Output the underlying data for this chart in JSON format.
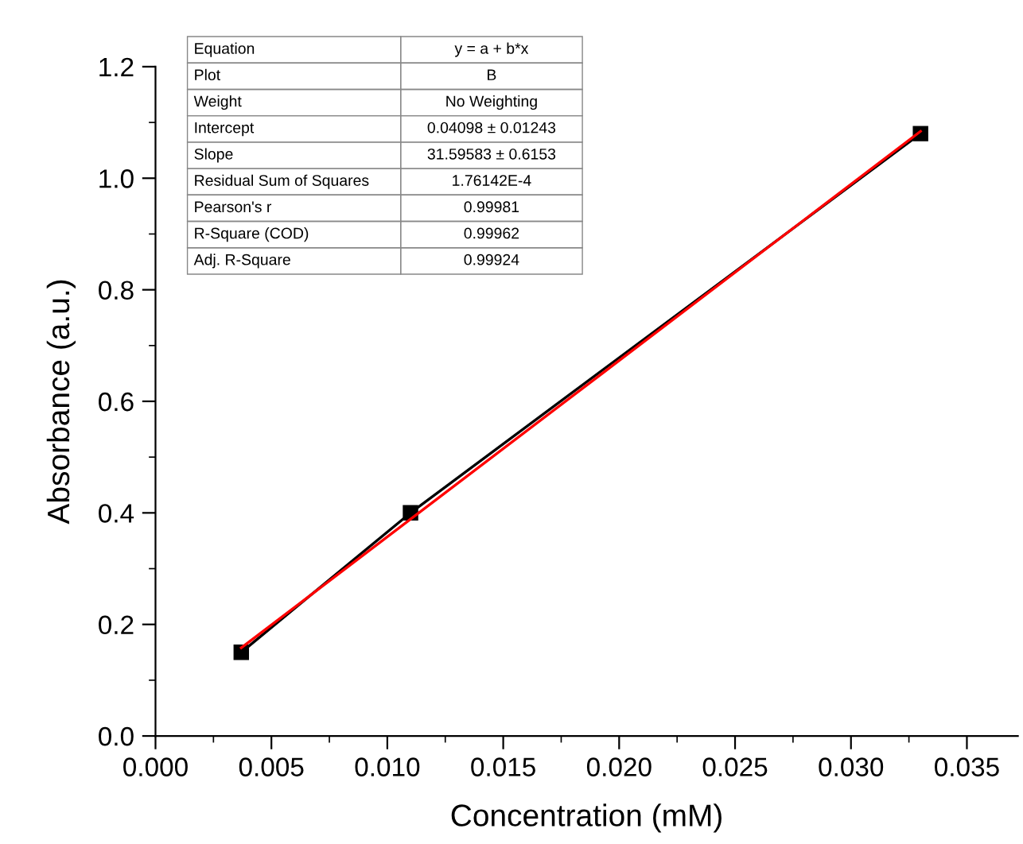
{
  "chart_data": {
    "type": "line",
    "xlabel": "Concentration (mM)",
    "ylabel": "Absorbance (a.u.)",
    "xlim": [
      0,
      0.0372
    ],
    "ylim": [
      0,
      1.2
    ],
    "xticks": [
      {
        "value": 0,
        "label": "0.000"
      },
      0.005,
      {
        "value": 0.01,
        "label": "0.010"
      },
      0.015,
      {
        "value": 0.02,
        "label": "0.020"
      },
      0.025,
      {
        "value": 0.03,
        "label": "0.030"
      },
      0.035
    ],
    "yticks": [
      {
        "value": 0,
        "label": "0.0"
      },
      0.2,
      0.4,
      0.6,
      0.8,
      {
        "value": 1,
        "label": "1.0"
      },
      1.2
    ],
    "grid": false,
    "legend": false,
    "series": [
      {
        "color": "#000000",
        "marker": "square",
        "x": [
          0.0037,
          0.011,
          0.033
        ],
        "values": [
          0.15,
          0.4,
          1.08
        ]
      },
      {
        "color": "#ff0000",
        "marker": "none",
        "x": [
          0.0037,
          0.033
        ],
        "values": [
          0.158,
          1.084
        ]
      }
    ],
    "annotations": [
      "Equation",
      "y = a + b*x",
      "Plot",
      "B",
      "Weight",
      "No Weighting",
      "Intercept",
      "0.04098 ± 0.01243",
      "Slope",
      "31.59583 ± 0.6153",
      "Residual Sum of Squares",
      "1.76142E-4",
      "Pearson's r",
      "0.99981",
      "R-Square (COD)",
      "0.99962",
      "Adj. R-Square",
      "0.99924"
    ]
  }
}
